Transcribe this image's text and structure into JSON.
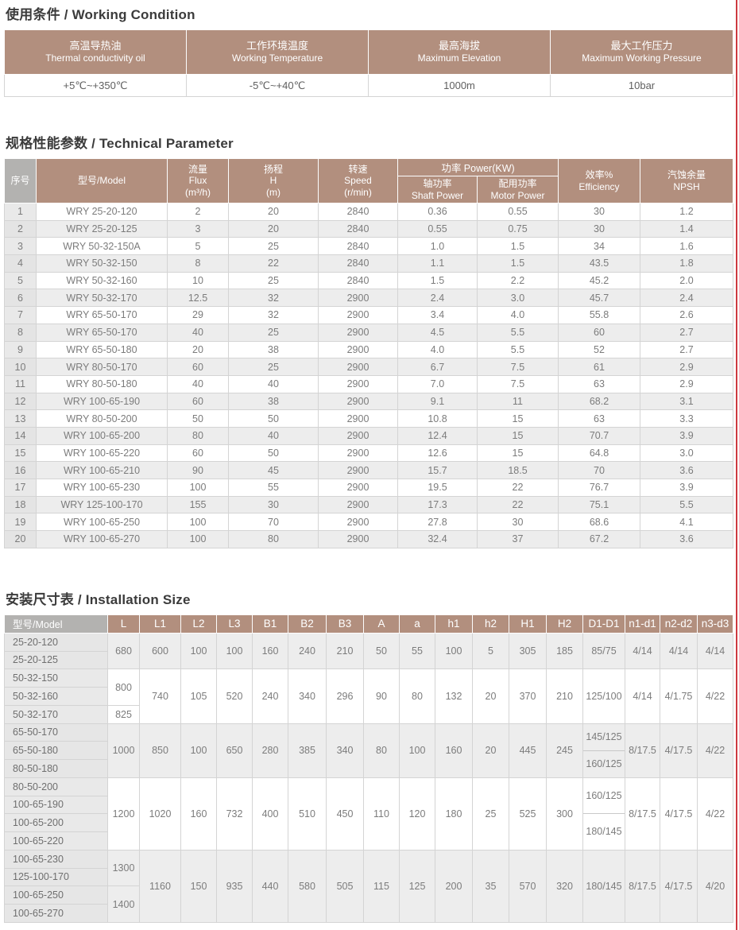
{
  "colors": {
    "header_brown": "#b28f7e",
    "header_gray": "#b3b2b0",
    "row_shade": "#ededed",
    "model_col_gray": "#e9e9e9",
    "edge_red": "#cd3a3f"
  },
  "working_condition": {
    "title": "使用条件 / Working Condition",
    "columns": [
      {
        "zh": "高温导热油",
        "en": "Thermal conductivity oil",
        "value": "+5℃~+350℃"
      },
      {
        "zh": "工作环境温度",
        "en": "Working Temperature",
        "value": "-5℃~+40℃"
      },
      {
        "zh": "最高海拔",
        "en": "Maximum Elevation",
        "value": "1000m"
      },
      {
        "zh": "最大工作压力",
        "en": "Maximum Working Pressure",
        "value": "10bar"
      }
    ]
  },
  "technical_parameter": {
    "title": "规格性能参数 / Technical Parameter",
    "headers": {
      "no": "序号",
      "model": "型号/Model",
      "flux_zh": "流量",
      "flux_en": "Flux",
      "flux_unit": "(m³/h)",
      "head_zh": "扬程",
      "head_en": "H",
      "head_unit": "(m)",
      "speed_zh": "转速",
      "speed_en": "Speed",
      "speed_unit": "(r/min)",
      "power_group": "功率  Power(KW)",
      "shaft_zh": "轴功率",
      "shaft_en": "Shaft Power",
      "motor_zh": "配用功率",
      "motor_en": "Motor Power",
      "eff_zh": "效率%",
      "eff_en": "Efficiency",
      "npsh_zh": "汽蚀余量",
      "npsh_en": "NPSH"
    },
    "rows": [
      [
        "1",
        "WRY 25-20-120",
        "2",
        "20",
        "2840",
        "0.36",
        "0.55",
        "30",
        "1.2"
      ],
      [
        "2",
        "WRY 25-20-125",
        "3",
        "20",
        "2840",
        "0.55",
        "0.75",
        "30",
        "1.4"
      ],
      [
        "3",
        "WRY 50-32-150A",
        "5",
        "25",
        "2840",
        "1.0",
        "1.5",
        "34",
        "1.6"
      ],
      [
        "4",
        "WRY 50-32-150",
        "8",
        "22",
        "2840",
        "1.1",
        "1.5",
        "43.5",
        "1.8"
      ],
      [
        "5",
        "WRY 50-32-160",
        "10",
        "25",
        "2840",
        "1.5",
        "2.2",
        "45.2",
        "2.0"
      ],
      [
        "6",
        "WRY 50-32-170",
        "12.5",
        "32",
        "2900",
        "2.4",
        "3.0",
        "45.7",
        "2.4"
      ],
      [
        "7",
        "WRY 65-50-170",
        "29",
        "32",
        "2900",
        "3.4",
        "4.0",
        "55.8",
        "2.6"
      ],
      [
        "8",
        "WRY 65-50-170",
        "40",
        "25",
        "2900",
        "4.5",
        "5.5",
        "60",
        "2.7"
      ],
      [
        "9",
        "WRY 65-50-180",
        "20",
        "38",
        "2900",
        "4.0",
        "5.5",
        "52",
        "2.7"
      ],
      [
        "10",
        "WRY 80-50-170",
        "60",
        "25",
        "2900",
        "6.7",
        "7.5",
        "61",
        "2.9"
      ],
      [
        "11",
        "WRY 80-50-180",
        "40",
        "40",
        "2900",
        "7.0",
        "7.5",
        "63",
        "2.9"
      ],
      [
        "12",
        "WRY 100-65-190",
        "60",
        "38",
        "2900",
        "9.1",
        "11",
        "68.2",
        "3.1"
      ],
      [
        "13",
        "WRY 80-50-200",
        "50",
        "50",
        "2900",
        "10.8",
        "15",
        "63",
        "3.3"
      ],
      [
        "14",
        "WRY 100-65-200",
        "80",
        "40",
        "2900",
        "12.4",
        "15",
        "70.7",
        "3.9"
      ],
      [
        "15",
        "WRY 100-65-220",
        "60",
        "50",
        "2900",
        "12.6",
        "15",
        "64.8",
        "3.0"
      ],
      [
        "16",
        "WRY 100-65-210",
        "90",
        "45",
        "2900",
        "15.7",
        "18.5",
        "70",
        "3.6"
      ],
      [
        "17",
        "WRY 100-65-230",
        "100",
        "55",
        "2900",
        "19.5",
        "22",
        "76.7",
        "3.9"
      ],
      [
        "18",
        "WRY 125-100-170",
        "155",
        "30",
        "2900",
        "17.3",
        "22",
        "75.1",
        "5.5"
      ],
      [
        "19",
        "WRY 100-65-250",
        "100",
        "70",
        "2900",
        "27.8",
        "30",
        "68.6",
        "4.1"
      ],
      [
        "20",
        "WRY 100-65-270",
        "100",
        "80",
        "2900",
        "32.4",
        "37",
        "67.2",
        "3.6"
      ]
    ]
  },
  "installation_size": {
    "title": "安装尺寸表 / Installation Size",
    "headers": [
      "型号/Model",
      "L",
      "L1",
      "L2",
      "L3",
      "B1",
      "B2",
      "B3",
      "A",
      "a",
      "h1",
      "h2",
      "H1",
      "H2",
      "D1-D1",
      "n1-d1",
      "n2-d2",
      "n3-d3"
    ],
    "groups": [
      {
        "models": [
          "25-20-120",
          "25-20-125"
        ],
        "L": [
          {
            "v": "680",
            "span": 2
          }
        ],
        "dims": [
          "600",
          "100",
          "100",
          "160",
          "240",
          "210",
          "50",
          "55",
          "100",
          "5",
          "305",
          "185"
        ],
        "d1": [
          "85/75"
        ],
        "n1": "4/14",
        "n2": "4/14",
        "n3": "4/14",
        "shade": true
      },
      {
        "models": [
          "50-32-150",
          "50-32-160",
          "50-32-170"
        ],
        "L": [
          {
            "v": "800",
            "span": 2
          },
          {
            "v": "825",
            "span": 1
          }
        ],
        "dims": [
          "740",
          "105",
          "520",
          "240",
          "340",
          "296",
          "90",
          "80",
          "132",
          "20",
          "370",
          "210"
        ],
        "d1": [
          "125/100"
        ],
        "n1": "4/14",
        "n2": "4/1.75",
        "n3": "4/22",
        "shade": false
      },
      {
        "models": [
          "65-50-170",
          "65-50-180",
          "80-50-180"
        ],
        "L": [
          {
            "v": "1000",
            "span": 3
          }
        ],
        "dims": [
          "850",
          "100",
          "650",
          "280",
          "385",
          "340",
          "80",
          "100",
          "160",
          "20",
          "445",
          "245"
        ],
        "d1": [
          "145/125",
          "160/125"
        ],
        "n1": "8/17.5",
        "n2": "4/17.5",
        "n3": "4/22",
        "shade": true
      },
      {
        "models": [
          "80-50-200",
          "100-65-190",
          "100-65-200",
          "100-65-220"
        ],
        "L": [
          {
            "v": "1200",
            "span": 4
          }
        ],
        "dims": [
          "1020",
          "160",
          "732",
          "400",
          "510",
          "450",
          "110",
          "120",
          "180",
          "25",
          "525",
          "300"
        ],
        "d1": [
          "160/125",
          "180/145"
        ],
        "n1": "8/17.5",
        "n2": "4/17.5",
        "n3": "4/22",
        "shade": false
      },
      {
        "models": [
          "100-65-230",
          "125-100-170",
          "100-65-250",
          "100-65-270"
        ],
        "L": [
          {
            "v": "1300",
            "span": 2
          },
          {
            "v": "1400",
            "span": 2
          }
        ],
        "dims": [
          "1160",
          "150",
          "935",
          "440",
          "580",
          "505",
          "115",
          "125",
          "200",
          "35",
          "570",
          "320"
        ],
        "d1": [
          "180/145"
        ],
        "n1": "8/17.5",
        "n2": "4/17.5",
        "n3": "4/20",
        "shade": true
      }
    ]
  }
}
